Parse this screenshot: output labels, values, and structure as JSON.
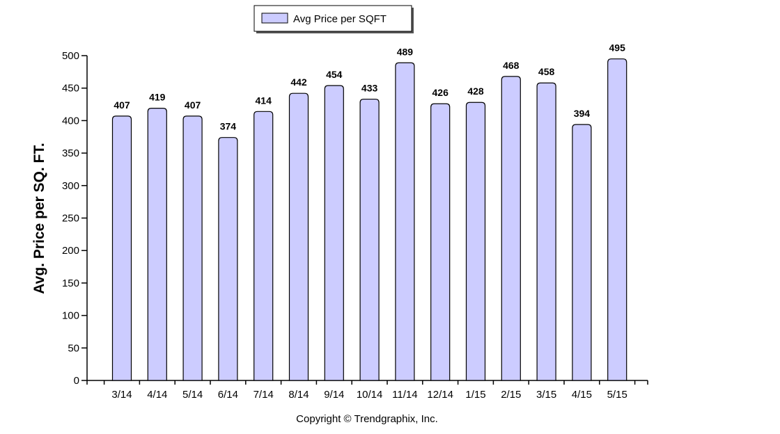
{
  "legend": {
    "label": "Avg Price per SQFT"
  },
  "copyright": "Copyright © Trendgraphix, Inc.",
  "colors": {
    "bar_fill": "#ccccff",
    "bar_stroke": "#000000",
    "legend_shadow": "#555555"
  },
  "chart_data": {
    "type": "bar",
    "title": "",
    "xlabel": "",
    "ylabel": "Avg. Price per SQ. FT.",
    "categories": [
      "3/14",
      "4/14",
      "5/14",
      "6/14",
      "7/14",
      "8/14",
      "9/14",
      "10/14",
      "11/14",
      "12/14",
      "1/15",
      "2/15",
      "3/15",
      "4/15",
      "5/15"
    ],
    "series": [
      {
        "name": "Avg Price per SQFT",
        "values": [
          407,
          419,
          407,
          374,
          414,
          442,
          454,
          433,
          489,
          426,
          428,
          468,
          458,
          394,
          495
        ]
      }
    ],
    "ylim": [
      0,
      500
    ],
    "yticks": [
      0,
      50,
      100,
      150,
      200,
      250,
      300,
      350,
      400,
      450,
      500
    ],
    "grid": false,
    "legend_position": "top-left",
    "data_labels": true
  }
}
